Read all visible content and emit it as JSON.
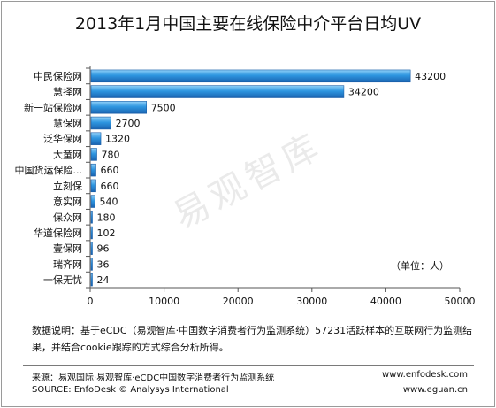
{
  "chart_data": {
    "type": "bar",
    "orientation": "horizontal",
    "title": "2013年1月中国主要在线保险中介平台日均UV",
    "categories": [
      "中民保险网",
      "慧择网",
      "新一站保险网",
      "慧保网",
      "泛华保网",
      "大童网",
      "中国货运保险...",
      "立刻保",
      "意实网",
      "保众网",
      "华道保险网",
      "壹保网",
      "瑞齐网",
      "一保无忧"
    ],
    "values": [
      43200,
      34200,
      7500,
      2700,
      1320,
      780,
      660,
      660,
      540,
      180,
      102,
      96,
      36,
      24
    ],
    "value_labels": [
      "43200",
      "34200",
      "7500",
      "2700",
      "1320",
      "780",
      "660",
      "660",
      "540",
      "180",
      "102",
      "96",
      "36",
      "24"
    ],
    "xlim": [
      0,
      50000
    ],
    "xticks": [
      "0",
      "10000",
      "20000",
      "30000",
      "40000",
      "50000"
    ],
    "grid": false,
    "unit_note": "（单位：人）",
    "bar_color": "#2b8ad6"
  },
  "watermark": "易观智库",
  "note_text": "数据说明：基于eCDC（易观智库·中国数字消费者行为监测系统）57231活跃样本的互联网行为监测结果，并结合cookie跟踪的方式综合分析所得。",
  "source_cn": "来源：易观国际·易观智库·eCDC中国数字消费者行为监测系统",
  "source_en": "SOURCE: EnfoDesk © Analysys International",
  "url1": "www.enfodesk.com",
  "url2": "www.eguan.cn"
}
